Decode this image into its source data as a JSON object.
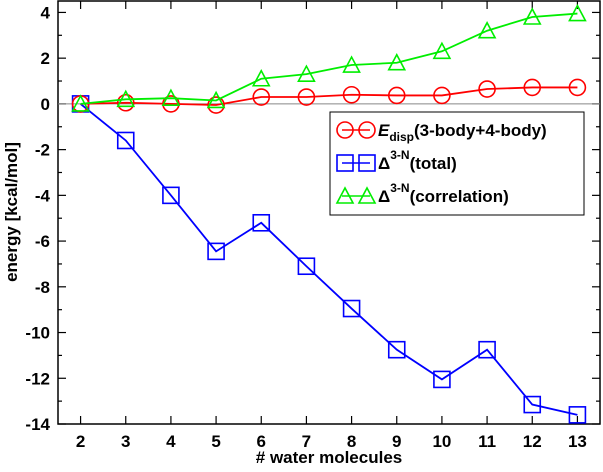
{
  "chart_data": {
    "type": "line",
    "xlabel": "# water molecules",
    "ylabel": "energy [kcal/mol]",
    "xlim": [
      1.5,
      13.5
    ],
    "ylim": [
      -14,
      4.5
    ],
    "xticks": [
      2,
      3,
      4,
      5,
      6,
      7,
      8,
      9,
      10,
      11,
      12,
      13
    ],
    "yticks": [
      4,
      2,
      0,
      -2,
      -4,
      -6,
      -8,
      -10,
      -12,
      -14
    ],
    "grid": false,
    "legend_position": "top-right",
    "x": [
      2,
      3,
      4,
      5,
      6,
      7,
      8,
      9,
      10,
      11,
      12,
      13
    ],
    "series": [
      {
        "name": "E",
        "name_sub": "disp",
        "name_rest": "(3-body+4-body)",
        "marker": "circle",
        "color": "#ff0000",
        "values": [
          0,
          0.05,
          0.0,
          -0.05,
          0.3,
          0.3,
          0.4,
          0.37,
          0.37,
          0.65,
          0.72,
          0.72
        ]
      },
      {
        "name": "Δ",
        "name_sup": "3-N",
        "name_rest": "(total)",
        "marker": "square",
        "color": "#0000ff",
        "values": [
          0,
          -1.6,
          -4.0,
          -6.45,
          -5.2,
          -7.1,
          -8.95,
          -10.75,
          -12.05,
          -10.75,
          -13.15,
          -13.6
        ]
      },
      {
        "name": "Δ",
        "name_sup": "3-N",
        "name_rest": "(correlation)",
        "marker": "triangle",
        "color": "#00ee00",
        "values": [
          0,
          0.2,
          0.25,
          0.15,
          1.1,
          1.3,
          1.7,
          1.8,
          2.3,
          3.2,
          3.8,
          3.95
        ]
      }
    ]
  }
}
